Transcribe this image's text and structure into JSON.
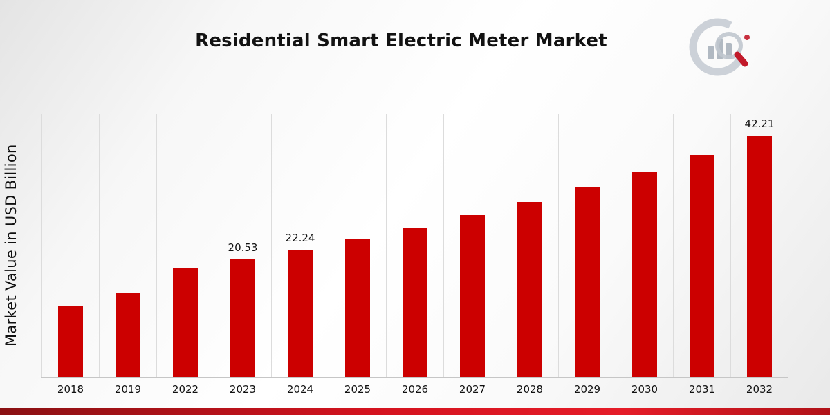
{
  "title": "Residential Smart Electric Meter Market",
  "ylabel": "Market Value in USD Billion",
  "logo": "chart-magnifier-logo",
  "colors": {
    "bar": "#cc0000",
    "footer_left": "#8a1113",
    "footer_mid": "#d4131f",
    "footer_bright": "#e51c28",
    "footer_right": "#b01218"
  },
  "chart_data": {
    "type": "bar",
    "title": "Residential Smart Electric Meter Market",
    "xlabel": "",
    "ylabel": "Market Value in USD Billion",
    "categories": [
      "2018",
      "2019",
      "2022",
      "2023",
      "2024",
      "2025",
      "2026",
      "2027",
      "2028",
      "2029",
      "2030",
      "2031",
      "2032"
    ],
    "values": [
      12.4,
      14.8,
      19.0,
      20.53,
      22.24,
      24.1,
      26.1,
      28.3,
      30.6,
      33.2,
      35.9,
      38.9,
      42.21
    ],
    "value_labels": {
      "2023": "20.53",
      "2024": "22.24",
      "2032": "42.21"
    },
    "ylim": [
      0,
      46
    ],
    "grid": "vertical-only",
    "legend": "none",
    "bar_color": "#cc0000"
  }
}
